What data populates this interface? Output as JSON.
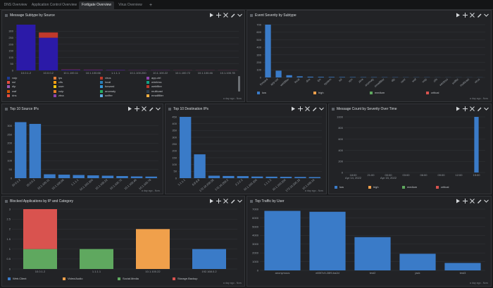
{
  "tabs": [
    {
      "label": "DNS Overview",
      "active": false
    },
    {
      "label": "Application Control Overview",
      "active": false
    },
    {
      "label": "Fortigate Overview",
      "active": true
    },
    {
      "label": "Virus Overview",
      "active": false
    }
  ],
  "add_tab": "+",
  "footer_text": "a day ago - Now",
  "panels": {
    "msg_subtype": {
      "title": "Message Subtype by Source",
      "legend": [
        [
          "voip",
          "#1f3a93"
        ],
        [
          "ips",
          "#e07b39"
        ],
        [
          "virus",
          "#c0392b"
        ],
        [
          "app-ctrl",
          "#8e44ad"
        ],
        [
          "ssl",
          "#e74c3c"
        ],
        [
          "cifs",
          "#f39c12"
        ],
        [
          "local",
          "#2980b9"
        ],
        [
          "wireless",
          "#16a085"
        ],
        [
          "dlp",
          "#9b59b6"
        ],
        [
          "user",
          "#f1c40f"
        ],
        [
          "forward",
          "#3498db"
        ],
        [
          "webfilter",
          "#c0392b"
        ],
        [
          "waf",
          "#d35400"
        ],
        [
          "voip",
          "#e67e22"
        ],
        [
          "anomaly",
          "#27ae60"
        ],
        [
          "multicast",
          "#2c3e50"
        ],
        [
          "dns",
          "#e74c3c"
        ],
        [
          "ztna",
          "#8e44ad"
        ],
        [
          "sniffer",
          "#5dade2"
        ],
        [
          "emailfilter",
          "#f5b041"
        ]
      ]
    },
    "event_severity": {
      "title": "Event Severity by Subtype",
      "legend": [
        [
          "low",
          "#3a7bc8"
        ],
        [
          "high",
          "#f0a04b"
        ],
        [
          "medium",
          "#5fa85f"
        ],
        [
          "critical",
          "#d9534f"
        ]
      ]
    },
    "top_src": {
      "title": "Top 10 Source IPs"
    },
    "top_dst": {
      "title": "Top 10 Destination IPs"
    },
    "msg_count": {
      "title": "Message Count by Severity Over Time",
      "legend": [
        [
          "low",
          "#3a7bc8"
        ],
        [
          "high",
          "#f0a04b"
        ],
        [
          "medium",
          "#5fa85f"
        ],
        [
          "critical",
          "#d9534f"
        ]
      ]
    },
    "blocked_apps": {
      "title": "Blocked Applications by IP and Category",
      "legend": [
        [
          "Web.Client",
          "#3a7bc8"
        ],
        [
          "Video/Audio",
          "#f0a04b"
        ],
        [
          "Social.Media",
          "#5fa85f"
        ],
        [
          "Storage.Backup",
          "#d9534f"
        ]
      ]
    },
    "top_traffic": {
      "title": "Top Traffic by User"
    }
  },
  "chart_data": [
    {
      "type": "bar",
      "title": "Message Subtype by Source",
      "categories": [
        "10.0.1.2",
        "10.0.0.2",
        "10.1.100.11",
        "10.1.100.66",
        "1.1.1.1",
        "10.1.100.200",
        "10.1.100.22",
        "10.1.100.72",
        "10.1.100.46",
        "10.1.100.78"
      ],
      "series": [
        {
          "values": [
            350,
            250,
            5,
            4,
            3,
            2,
            2,
            1,
            1,
            1
          ],
          "color": "#2b1aa8"
        },
        {
          "values": [
            0,
            40,
            2,
            2,
            1,
            1,
            1,
            1,
            1,
            1
          ],
          "color": "#c0392b"
        }
      ],
      "ylim": [
        0,
        350
      ],
      "yticks": [
        0,
        50,
        100,
        150,
        200,
        250,
        300
      ],
      "grid": true
    },
    {
      "type": "bar",
      "title": "Event Severity by Subtype",
      "categories": [
        "forward",
        "app-ctrl",
        "webfilter",
        "local",
        "dns",
        "ips",
        "system",
        "ssl",
        "vpn",
        "ztna",
        "anomaly",
        "emailfilter",
        "dlp",
        "user",
        "waf",
        "voip",
        "cifs",
        "wireless",
        "sniffer",
        "multicast",
        "virus"
      ],
      "values": [
        700,
        90,
        30,
        15,
        10,
        8,
        7,
        6,
        5,
        4,
        4,
        3,
        3,
        2,
        2,
        2,
        1,
        1,
        1,
        1,
        1
      ],
      "ylim": [
        0,
        700
      ],
      "yticks": [
        0,
        100,
        200,
        300,
        400,
        500,
        600,
        700
      ],
      "grid": true
    },
    {
      "type": "bar",
      "title": "Top 10 Source IPs",
      "categories": [
        "10.0.1.2",
        "10.0.0.2",
        "10.1.100.11",
        "10.1.100.66",
        "1.1.1.1",
        "10.1.100.200",
        "10.1.100.22",
        "10.1.100.72",
        "10.1.100.46",
        "10.1.100.78"
      ],
      "values": [
        320,
        310,
        22,
        20,
        18,
        16,
        14,
        12,
        10,
        9
      ],
      "ylim": [
        0,
        350
      ],
      "yticks": [
        0,
        50,
        100,
        150,
        200,
        250,
        300
      ],
      "grid": true
    },
    {
      "type": "bar",
      "title": "Top 10 Destination IPs",
      "categories": [
        "1.1.1.1",
        "8.8.8.8",
        "172.16.200.55",
        "172.16.200.2",
        "2.2.2.2",
        "10.1.100.100",
        "1.1.1.2",
        "10.1.100.200",
        "172.16.200.15",
        "10.1.100.16"
      ],
      "values": [
        450,
        175,
        18,
        16,
        15,
        12,
        11,
        10,
        9,
        8
      ],
      "ylim": [
        0,
        450
      ],
      "yticks": [
        0,
        50,
        100,
        150,
        200,
        250,
        300,
        350,
        400,
        450
      ],
      "grid": true
    },
    {
      "type": "bar",
      "title": "Message Count by Severity Over Time",
      "x": [
        "18:00",
        "21:00",
        "00:00",
        "03:00",
        "06:00",
        "09:00",
        "12:00",
        "15:00"
      ],
      "x_sub": [
        "Apr 14, 2022",
        "",
        "Apr 15, 2022",
        "",
        "",
        "",
        "",
        ""
      ],
      "values": [
        0,
        0,
        0,
        0,
        0,
        0,
        0,
        1000
      ],
      "ylim": [
        0,
        1000
      ],
      "yticks": [
        0,
        200,
        400,
        600,
        800,
        1000
      ],
      "grid": true
    },
    {
      "type": "bar",
      "title": "Blocked Applications by IP and Category",
      "categories": [
        "10.0.1.2",
        "1.1.1.1",
        "10.1.100.22",
        "192.168.0.2"
      ],
      "series": [
        {
          "name": "Web.Client",
          "values": [
            0,
            0,
            0,
            1
          ]
        },
        {
          "name": "Video/Audio",
          "values": [
            0,
            0,
            2,
            0
          ]
        },
        {
          "name": "Social.Media",
          "values": [
            1,
            1,
            0,
            0
          ]
        },
        {
          "name": "Storage.Backup",
          "values": [
            2,
            0,
            0,
            0
          ]
        }
      ],
      "ylim": [
        0,
        3
      ],
      "yticks": [
        0,
        0.5,
        1,
        1.5,
        2,
        2.5,
        3
      ],
      "grid": true
    },
    {
      "type": "bar",
      "title": "Top Traffic by User",
      "categories": [
        "anonymous",
        "e85f7c9-28f9-ba2d",
        "test2",
        "jack",
        "test3"
      ],
      "values": [
        6800,
        6700,
        3800,
        1900,
        850
      ],
      "ylim": [
        0,
        7000
      ],
      "yticks": [
        0,
        1000,
        2000,
        3000,
        4000,
        5000,
        6000,
        7000
      ],
      "grid": true
    }
  ]
}
